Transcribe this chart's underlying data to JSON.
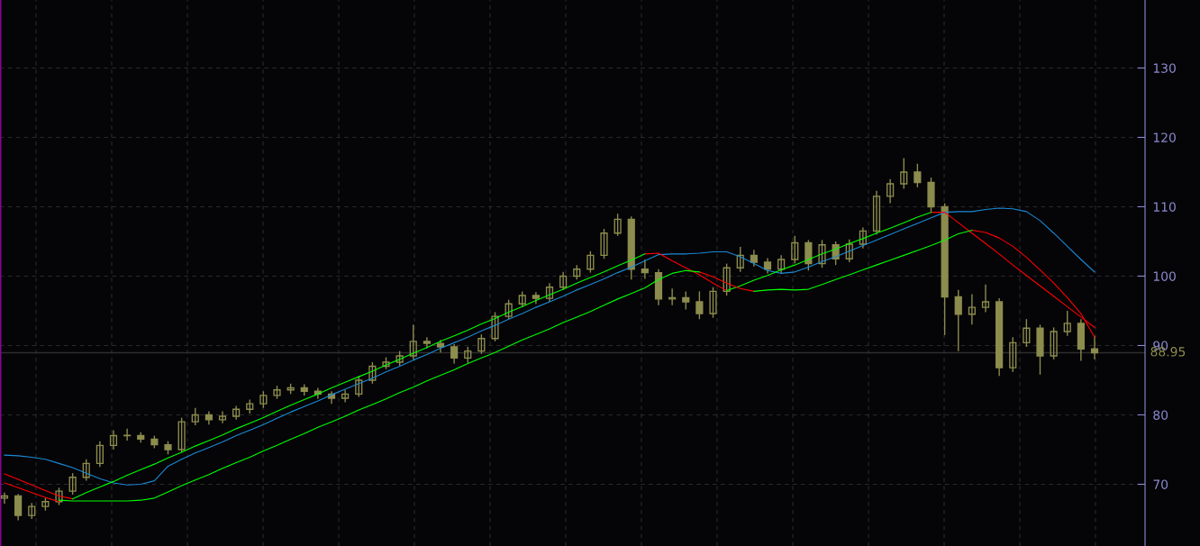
{
  "chart_data": {
    "type": "candlestick",
    "color": "#8c8c4e",
    "categories": [
      null,
      null,
      null,
      null,
      null,
      null,
      null,
      null,
      null,
      null,
      null,
      null,
      null,
      null,
      null,
      null,
      null,
      null,
      null,
      null,
      null,
      null,
      null,
      null,
      null,
      null,
      null,
      null,
      null,
      null,
      null,
      null,
      null,
      null,
      null,
      null,
      null,
      null,
      null,
      null,
      null,
      null,
      null,
      null,
      null,
      null,
      null,
      null,
      null,
      null,
      null,
      null,
      null,
      null,
      null,
      null,
      null,
      null,
      null,
      null,
      null,
      null,
      null,
      null,
      null,
      null,
      null,
      null,
      null,
      null,
      null,
      null,
      null,
      null,
      null,
      null,
      null,
      null,
      null,
      null,
      null
    ],
    "ohlc": [
      [
        68.0,
        68.8,
        67.2,
        68.3
      ],
      [
        68.3,
        68.6,
        64.8,
        65.5
      ],
      [
        65.5,
        67.3,
        65.0,
        66.8
      ],
      [
        66.8,
        68.0,
        66.2,
        67.5
      ],
      [
        67.5,
        69.5,
        67.0,
        69.0
      ],
      [
        69.0,
        71.6,
        68.5,
        71.0
      ],
      [
        71.0,
        73.6,
        70.5,
        73.0
      ],
      [
        73.0,
        76.2,
        72.5,
        75.6
      ],
      [
        75.6,
        77.8,
        75.0,
        77.0
      ],
      [
        77.0,
        78.0,
        76.3,
        77.0
      ],
      [
        77.0,
        77.5,
        76.0,
        76.5
      ],
      [
        76.5,
        77.0,
        75.2,
        75.7
      ],
      [
        75.7,
        76.2,
        74.3,
        75.0
      ],
      [
        75.0,
        79.6,
        74.6,
        79.0
      ],
      [
        79.0,
        81.0,
        78.5,
        80.0
      ],
      [
        80.0,
        80.5,
        78.6,
        79.3
      ],
      [
        79.3,
        80.5,
        78.8,
        79.8
      ],
      [
        79.8,
        81.3,
        79.3,
        80.8
      ],
      [
        80.8,
        82.2,
        80.2,
        81.6
      ],
      [
        81.6,
        83.4,
        81.0,
        82.8
      ],
      [
        82.8,
        84.2,
        82.3,
        83.6
      ],
      [
        83.6,
        84.5,
        83.0,
        83.9
      ],
      [
        83.9,
        84.4,
        82.8,
        83.4
      ],
      [
        83.4,
        83.9,
        82.3,
        83.0
      ],
      [
        83.0,
        83.4,
        81.6,
        82.4
      ],
      [
        82.4,
        83.6,
        81.8,
        83.0
      ],
      [
        83.0,
        85.6,
        82.6,
        85.0
      ],
      [
        85.0,
        87.6,
        84.5,
        87.0
      ],
      [
        87.0,
        88.3,
        86.6,
        87.6
      ],
      [
        87.6,
        89.2,
        87.0,
        88.5
      ],
      [
        88.5,
        93.0,
        88.0,
        90.6
      ],
      [
        90.6,
        91.2,
        89.6,
        90.3
      ],
      [
        90.3,
        90.8,
        89.0,
        89.8
      ],
      [
        89.8,
        90.2,
        87.4,
        88.2
      ],
      [
        88.2,
        89.8,
        87.5,
        89.2
      ],
      [
        89.2,
        91.6,
        88.8,
        91.0
      ],
      [
        91.0,
        94.8,
        90.6,
        94.2
      ],
      [
        94.2,
        96.6,
        93.8,
        96.0
      ],
      [
        96.0,
        97.8,
        95.5,
        97.2
      ],
      [
        97.2,
        97.7,
        96.0,
        96.8
      ],
      [
        96.8,
        99.0,
        96.3,
        98.4
      ],
      [
        98.4,
        100.6,
        98.0,
        100.0
      ],
      [
        100.0,
        101.6,
        99.5,
        101.0
      ],
      [
        101.0,
        103.6,
        100.5,
        103.0
      ],
      [
        103.0,
        106.8,
        102.5,
        106.2
      ],
      [
        106.2,
        109.0,
        105.8,
        108.2
      ],
      [
        108.2,
        108.6,
        99.5,
        101.0
      ],
      [
        101.0,
        102.4,
        99.6,
        100.5
      ],
      [
        100.5,
        101.0,
        95.8,
        96.7
      ],
      [
        96.7,
        98.2,
        95.8,
        96.9
      ],
      [
        96.9,
        97.8,
        95.2,
        96.3
      ],
      [
        96.3,
        97.8,
        93.8,
        94.6
      ],
      [
        94.6,
        98.4,
        94.0,
        97.8
      ],
      [
        97.8,
        101.8,
        97.2,
        101.2
      ],
      [
        101.2,
        104.2,
        100.6,
        103.0
      ],
      [
        103.0,
        103.8,
        101.4,
        102.0
      ],
      [
        102.0,
        102.6,
        100.4,
        101.0
      ],
      [
        101.0,
        103.0,
        100.4,
        102.4
      ],
      [
        102.4,
        105.8,
        101.8,
        104.8
      ],
      [
        104.8,
        105.2,
        100.8,
        101.8
      ],
      [
        101.8,
        105.2,
        101.2,
        104.5
      ],
      [
        104.5,
        105.0,
        101.6,
        102.5
      ],
      [
        102.5,
        105.3,
        102.0,
        104.6
      ],
      [
        104.6,
        107.0,
        104.0,
        106.5
      ],
      [
        106.5,
        112.3,
        106.0,
        111.5
      ],
      [
        111.5,
        114.0,
        110.5,
        113.3
      ],
      [
        113.3,
        117.0,
        112.6,
        115.0
      ],
      [
        115.0,
        116.2,
        112.8,
        113.5
      ],
      [
        113.5,
        114.2,
        109.3,
        110.0
      ],
      [
        110.0,
        110.5,
        91.5,
        97.0
      ],
      [
        97.0,
        98.0,
        89.2,
        94.5
      ],
      [
        94.5,
        97.4,
        93.0,
        95.5
      ],
      [
        95.5,
        98.8,
        94.8,
        96.3
      ],
      [
        96.3,
        96.8,
        85.6,
        86.8
      ],
      [
        86.8,
        91.2,
        86.2,
        90.4
      ],
      [
        90.4,
        93.8,
        89.8,
        92.5
      ],
      [
        92.5,
        93.0,
        85.8,
        88.5
      ],
      [
        88.5,
        92.6,
        88.0,
        92.0
      ],
      [
        92.0,
        95.0,
        91.4,
        93.2
      ],
      [
        93.2,
        93.8,
        87.8,
        89.5
      ],
      [
        89.5,
        91.4,
        88.0,
        88.95
      ]
    ],
    "series": [
      {
        "type": "line",
        "color": "#1a8ad4",
        "values": [
          74.2,
          74.1,
          73.9,
          73.6,
          73.0,
          72.4,
          71.6,
          70.8,
          70.2,
          69.9,
          70.0,
          70.5,
          72.6,
          73.6,
          74.5,
          75.3,
          76.1,
          77.0,
          77.8,
          78.6,
          79.5,
          80.4,
          81.2,
          82.0,
          82.9,
          83.7,
          84.5,
          85.3,
          86.2,
          87.0,
          87.9,
          88.7,
          89.6,
          90.4,
          91.2,
          92.1,
          92.9,
          93.8,
          94.6,
          95.5,
          96.3,
          97.1,
          98.0,
          98.8,
          99.6,
          100.5,
          101.3,
          102.2,
          103.1,
          103.2,
          103.2,
          103.3,
          103.5,
          103.5,
          102.8,
          101.8,
          100.8,
          100.4,
          100.6,
          101.3,
          102.1,
          102.8,
          103.6,
          104.4,
          105.2,
          106.0,
          106.8,
          107.6,
          108.4,
          109.2,
          109.3,
          109.3,
          109.6,
          109.8,
          109.7,
          109.3,
          108.0,
          106.2,
          104.3,
          102.4,
          100.6
        ]
      },
      {
        "type": "line",
        "color": "#ff0000",
        "values": [
          71.5,
          70.7,
          69.9,
          69.1,
          68.3,
          67.9,
          null,
          null,
          null,
          null,
          null,
          null,
          null,
          null,
          null,
          null,
          null,
          null,
          null,
          null,
          null,
          null,
          null,
          null,
          null,
          null,
          null,
          null,
          null,
          null,
          null,
          null,
          null,
          null,
          null,
          null,
          null,
          null,
          null,
          null,
          null,
          null,
          null,
          null,
          null,
          null,
          null,
          103.2,
          103.3,
          102.2,
          101.2,
          100.2,
          99.0,
          97.9,
          null,
          null,
          null,
          null,
          null,
          null,
          null,
          null,
          null,
          null,
          null,
          null,
          null,
          null,
          109.2,
          109.2,
          107.7,
          106.2,
          104.7,
          103.2,
          101.6,
          100.1,
          98.6,
          97.1,
          95.6,
          94.1,
          92.6
        ]
      },
      {
        "type": "line",
        "color": "#00ff00",
        "values": [
          null,
          null,
          null,
          null,
          null,
          67.9,
          68.8,
          69.6,
          70.4,
          71.3,
          72.1,
          72.9,
          73.8,
          74.6,
          75.5,
          76.3,
          77.1,
          78.0,
          78.8,
          79.6,
          80.5,
          81.4,
          82.2,
          83.0,
          83.9,
          84.7,
          85.5,
          86.3,
          87.2,
          88.0,
          88.9,
          89.7,
          90.6,
          91.4,
          92.2,
          93.1,
          93.9,
          94.8,
          95.6,
          96.5,
          97.3,
          98.1,
          99.0,
          99.8,
          100.6,
          101.5,
          102.3,
          103.2,
          null,
          null,
          null,
          null,
          null,
          97.9,
          98.6,
          99.4,
          100.1,
          100.9,
          101.6,
          102.4,
          103.2,
          103.9,
          104.7,
          105.4,
          106.2,
          106.9,
          107.7,
          108.5,
          109.2,
          null,
          null,
          null,
          null,
          null,
          null,
          null,
          null,
          null,
          null,
          null,
          null
        ]
      },
      {
        "type": "line",
        "color": "#ff0000",
        "values": [
          70.2,
          69.5,
          68.8,
          68.1,
          67.5,
          null,
          null,
          null,
          null,
          null,
          null,
          null,
          null,
          null,
          null,
          null,
          null,
          null,
          null,
          null,
          null,
          null,
          null,
          null,
          null,
          null,
          null,
          null,
          null,
          null,
          null,
          null,
          null,
          null,
          null,
          null,
          null,
          null,
          null,
          null,
          null,
          null,
          null,
          null,
          null,
          null,
          null,
          null,
          null,
          null,
          null,
          100.6,
          99.9,
          99.0,
          98.2,
          97.8,
          null,
          null,
          null,
          null,
          null,
          null,
          null,
          null,
          null,
          null,
          null,
          null,
          null,
          null,
          null,
          106.6,
          106.3,
          105.5,
          104.3,
          102.7,
          100.9,
          99.0,
          96.9,
          94.6,
          91.2
        ]
      },
      {
        "type": "line",
        "color": "#00ff00",
        "values": [
          null,
          null,
          null,
          null,
          67.7,
          67.6,
          67.6,
          67.6,
          67.6,
          67.6,
          67.7,
          68.0,
          68.9,
          69.8,
          70.6,
          71.4,
          72.3,
          73.1,
          73.9,
          74.8,
          75.6,
          76.5,
          77.3,
          78.2,
          79.0,
          79.8,
          80.7,
          81.5,
          82.3,
          83.2,
          84.0,
          84.9,
          85.7,
          86.5,
          87.4,
          88.2,
          89.0,
          89.9,
          90.8,
          91.6,
          92.4,
          93.3,
          94.1,
          94.9,
          95.8,
          96.7,
          97.5,
          98.3,
          99.5,
          100.4,
          100.8,
          100.6,
          null,
          null,
          null,
          97.8,
          98.0,
          98.1,
          98.0,
          98.1,
          98.8,
          99.5,
          100.2,
          100.9,
          101.6,
          102.3,
          103.0,
          103.7,
          104.4,
          105.2,
          106.1,
          106.6,
          null,
          null,
          null,
          null,
          null,
          null,
          null,
          null,
          null
        ]
      }
    ],
    "ylim": [
      61.1,
      139.8
    ],
    "yticks": [
      70,
      80,
      90,
      100,
      110,
      120,
      130
    ],
    "ref_lines": [
      {
        "axis": "y",
        "value": 88.95,
        "label": "88.95",
        "color": "#2e2e2e"
      }
    ],
    "grid": true,
    "tick_labels": "y",
    "line_style": "solid",
    "marker": "none"
  }
}
